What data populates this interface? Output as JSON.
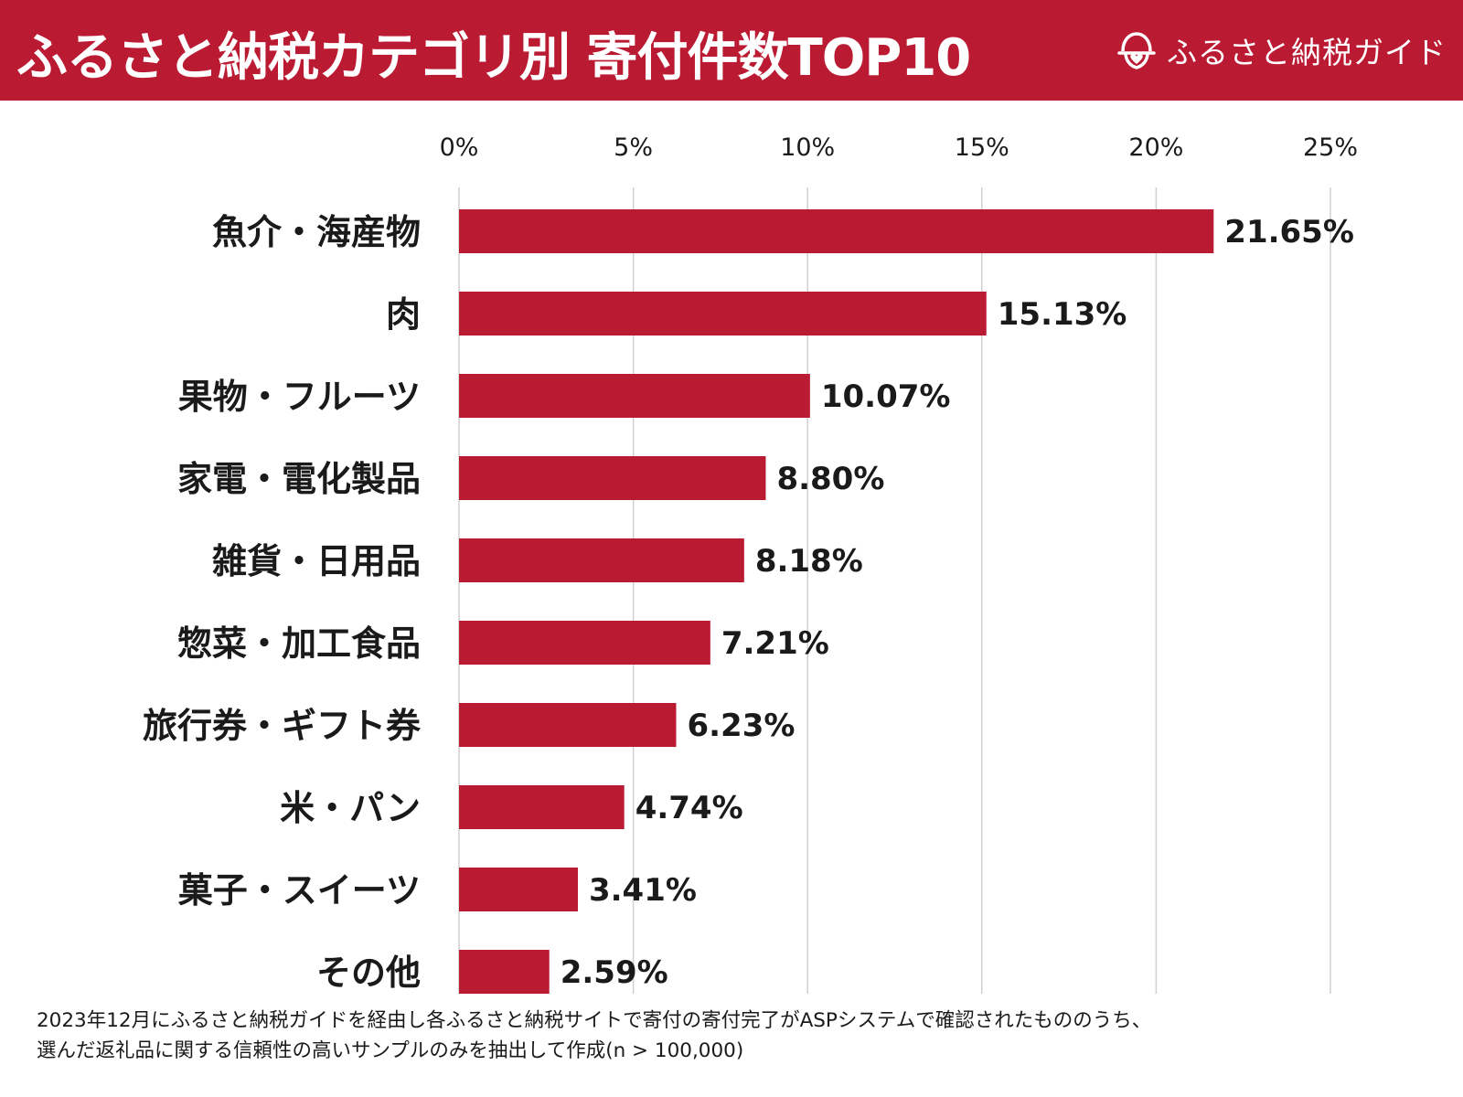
{
  "header": {
    "title": "ふるさと納税カテゴリ別 寄付件数TOP10",
    "brand_name": "ふるさと納税ガイド",
    "brand_icon": "furusato-guide-logo-icon"
  },
  "colors": {
    "header_bg": "#bb1a33",
    "bar": "#bb1a33",
    "grid": "#d0d0d0",
    "text": "#1a1a1a"
  },
  "chart_data": {
    "type": "bar",
    "orientation": "horizontal",
    "title": "ふるさと納税カテゴリ別 寄付件数TOP10",
    "xlabel": "",
    "ylabel": "",
    "categories": [
      "魚介・海産物",
      "肉",
      "果物・フルーツ",
      "家電・電化製品",
      "雑貨・日用品",
      "惣菜・加工食品",
      "旅行券・ギフト券",
      "米・パン",
      "菓子・スイーツ",
      "その他"
    ],
    "values": [
      21.65,
      15.13,
      10.07,
      8.8,
      8.18,
      7.21,
      6.23,
      4.74,
      3.41,
      2.59
    ],
    "value_labels": [
      "21.65%",
      "15.13%",
      "10.07%",
      "8.80%",
      "8.18%",
      "7.21%",
      "6.23%",
      "4.74%",
      "3.41%",
      "2.59%"
    ],
    "xlim": [
      0,
      25
    ],
    "xticks": [
      0,
      5,
      10,
      15,
      20,
      25
    ],
    "xtick_labels": [
      "0%",
      "5%",
      "10%",
      "15%",
      "20%",
      "25%"
    ],
    "axis_position": "top",
    "grid": true,
    "legend": "none"
  },
  "footnote": {
    "line1": "2023年12月にふるさと納税ガイドを経由し各ふるさと納税サイトで寄付の寄付完了がASPシステムで確認されたもののうち、",
    "line2": "選んだ返礼品に関する信頼性の高いサンプルのみを抽出して作成(n > 100,000)"
  }
}
